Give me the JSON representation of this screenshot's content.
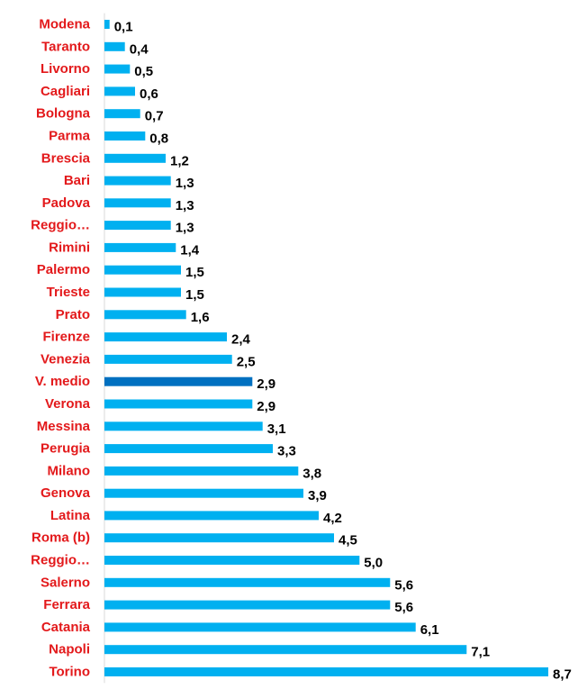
{
  "chart_data": {
    "type": "bar",
    "orientation": "horizontal",
    "categories": [
      "Modena",
      "Taranto",
      "Livorno",
      "Cagliari",
      "Bologna",
      "Parma",
      "Brescia",
      "Bari",
      "Padova",
      "Reggio…",
      "Rimini",
      "Palermo",
      "Trieste",
      "Prato",
      "Firenze",
      "Venezia",
      "V. medio",
      "Verona",
      "Messina",
      "Perugia",
      "Milano",
      "Genova",
      "Latina",
      "Roma (b)",
      "Reggio…",
      "Salerno",
      "Ferrara",
      "Catania",
      "Napoli",
      "Torino"
    ],
    "values": [
      0.1,
      0.4,
      0.5,
      0.6,
      0.7,
      0.8,
      1.2,
      1.3,
      1.3,
      1.3,
      1.4,
      1.5,
      1.5,
      1.6,
      2.4,
      2.5,
      2.9,
      2.9,
      3.1,
      3.3,
      3.8,
      3.9,
      4.2,
      4.5,
      5.0,
      5.6,
      5.6,
      6.1,
      7.1,
      8.7
    ],
    "value_labels": [
      "0,1",
      "0,4",
      "0,5",
      "0,6",
      "0,7",
      "0,8",
      "1,2",
      "1,3",
      "1,3",
      "1,3",
      "1,4",
      "1,5",
      "1,5",
      "1,6",
      "2,4",
      "2,5",
      "2,9",
      "2,9",
      "3,1",
      "3,3",
      "3,8",
      "3,9",
      "4,2",
      "4,5",
      "5,0",
      "5,6",
      "5,6",
      "6,1",
      "7,1",
      "8,7"
    ],
    "highlight_category": "V. medio",
    "xlim": [
      0,
      8.7
    ],
    "title": "",
    "xlabel": "",
    "ylabel": "",
    "grid": false,
    "legend": "none",
    "colors": {
      "bar": "#00B0F0",
      "highlight_bar": "#0070C0",
      "category_label": "#E3191B",
      "value_label": "#000000"
    }
  }
}
